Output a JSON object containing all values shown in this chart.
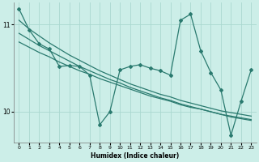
{
  "xlabel": "Humidex (Indice chaleur)",
  "bg_color": "#cceee8",
  "line_color": "#2a7a6f",
  "grid_color": "#aad8d0",
  "x": [
    0,
    1,
    2,
    3,
    4,
    5,
    6,
    7,
    8,
    9,
    10,
    11,
    12,
    13,
    14,
    15,
    16,
    17,
    18,
    19,
    20,
    21,
    22,
    23
  ],
  "y_main": [
    11.18,
    10.94,
    10.78,
    10.72,
    10.52,
    10.53,
    10.52,
    10.42,
    9.85,
    10.0,
    10.48,
    10.52,
    10.54,
    10.5,
    10.47,
    10.42,
    11.05,
    11.12,
    10.7,
    10.45,
    10.25,
    9.73,
    10.12,
    10.48
  ],
  "y_trend1": [
    11.05,
    10.95,
    10.87,
    10.79,
    10.72,
    10.65,
    10.59,
    10.53,
    10.47,
    10.42,
    10.37,
    10.32,
    10.28,
    10.24,
    10.2,
    10.17,
    10.13,
    10.1,
    10.07,
    10.04,
    10.01,
    9.99,
    9.97,
    9.95
  ],
  "y_trend2": [
    10.9,
    10.83,
    10.76,
    10.7,
    10.64,
    10.58,
    10.52,
    10.47,
    10.42,
    10.37,
    10.33,
    10.28,
    10.24,
    10.2,
    10.16,
    10.13,
    10.09,
    10.06,
    10.03,
    10.0,
    9.97,
    9.94,
    9.92,
    9.9
  ],
  "y_trend3": [
    10.8,
    10.74,
    10.68,
    10.63,
    10.57,
    10.52,
    10.47,
    10.43,
    10.38,
    10.34,
    10.3,
    10.26,
    10.22,
    10.18,
    10.15,
    10.12,
    10.08,
    10.05,
    10.03,
    10.0,
    9.97,
    9.95,
    9.93,
    9.91
  ],
  "ylim": [
    9.65,
    11.25
  ],
  "yticks": [
    10,
    11
  ],
  "xticks": [
    0,
    1,
    2,
    3,
    4,
    5,
    6,
    7,
    8,
    9,
    10,
    11,
    12,
    13,
    14,
    15,
    16,
    17,
    18,
    19,
    20,
    21,
    22,
    23
  ]
}
